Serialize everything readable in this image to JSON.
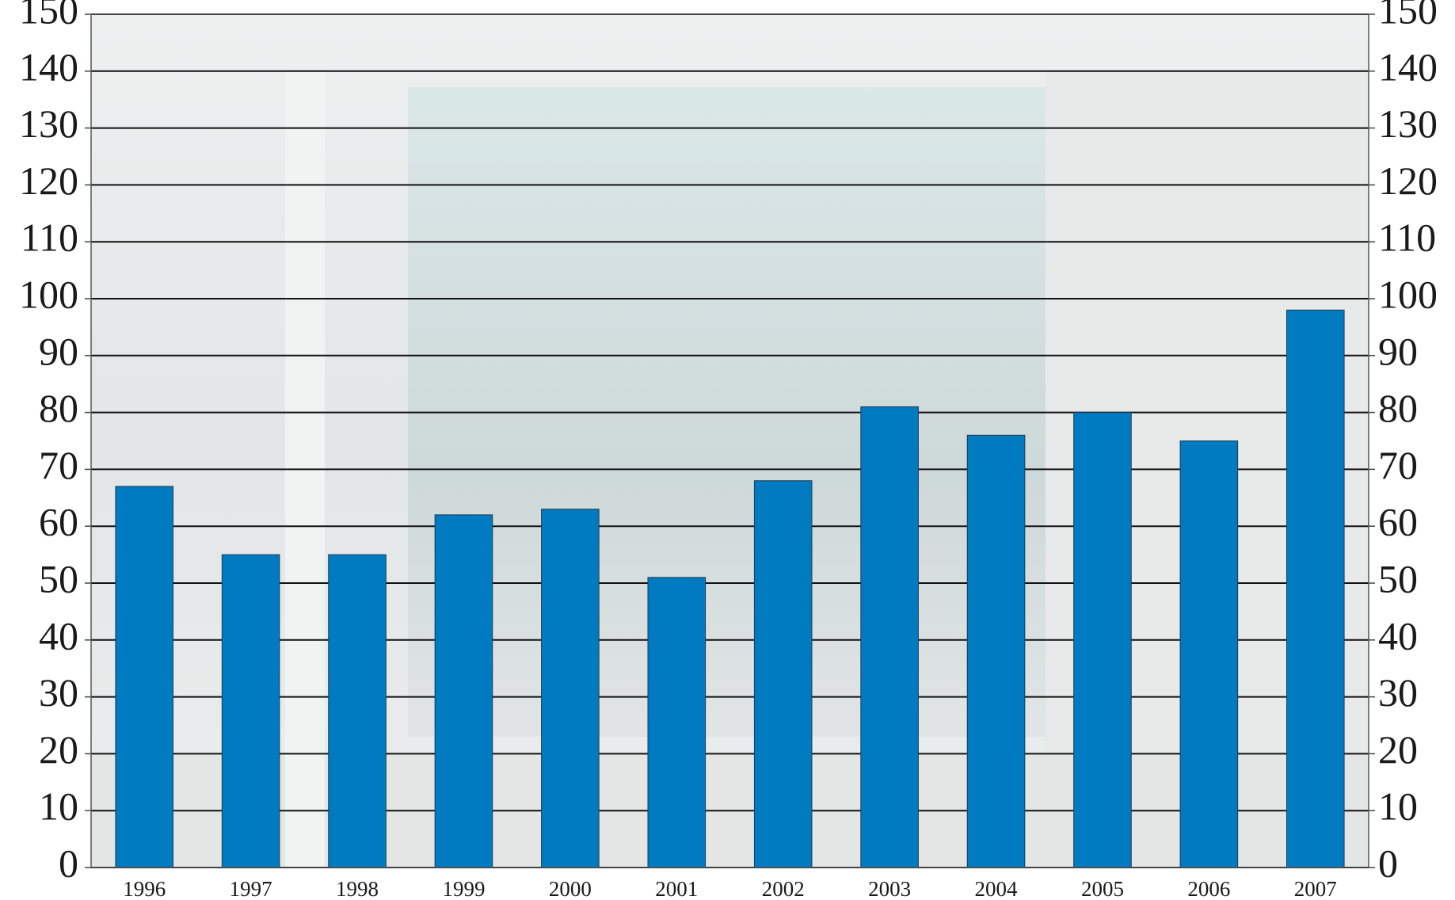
{
  "chart_data": {
    "type": "bar",
    "categories": [
      "1996",
      "1997",
      "1998",
      "1999",
      "2000",
      "2001",
      "2002",
      "2003",
      "2004",
      "2005",
      "2006",
      "2007"
    ],
    "values": [
      67,
      55,
      55,
      62,
      63,
      51,
      68,
      81,
      76,
      80,
      75,
      98
    ],
    "color": "#007ac1",
    "ylim": [
      0,
      150
    ],
    "yticks": [
      0,
      10,
      20,
      30,
      40,
      50,
      60,
      70,
      80,
      90,
      100,
      110,
      120,
      130,
      140,
      150
    ],
    "y2lim": [
      0,
      150
    ],
    "y2ticks": [
      0,
      10,
      20,
      30,
      40,
      50,
      60,
      70,
      80,
      90,
      100,
      110,
      120,
      130,
      140,
      150
    ],
    "grid": true
  }
}
